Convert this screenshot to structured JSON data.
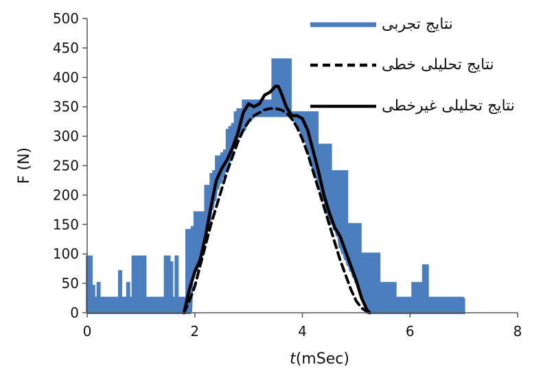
{
  "chart_data": {
    "type": "line",
    "xlabel_italic": "t",
    "xlabel_unit": "(mSec)",
    "ylabel": "F (N)",
    "xlim": [
      0,
      8
    ],
    "ylim": [
      0,
      500
    ],
    "x_ticks": [
      0,
      2,
      4,
      6,
      8
    ],
    "y_ticks": [
      0,
      50,
      100,
      150,
      200,
      250,
      300,
      350,
      400,
      450,
      500
    ],
    "grid": false,
    "legend_position": "top-right",
    "series": [
      {
        "name": "نتایج تجربی",
        "style": "solid-thick",
        "color": "#4a7ebf",
        "x": [
          0,
          0.05,
          0.1,
          0.15,
          0.2,
          0.25,
          0.3,
          0.35,
          0.4,
          0.45,
          0.5,
          0.55,
          0.6,
          0.65,
          0.7,
          0.75,
          0.8,
          0.85,
          0.9,
          0.95,
          1.0,
          1.05,
          1.1,
          1.15,
          1.2,
          1.25,
          1.3,
          1.35,
          1.4,
          1.45,
          1.5,
          1.55,
          1.6,
          1.65,
          1.7,
          1.75,
          1.8,
          1.85,
          1.9,
          1.95,
          2.0,
          2.05,
          2.1,
          2.15,
          2.2,
          2.25,
          2.3,
          2.35,
          2.4,
          2.45,
          2.5,
          2.55,
          2.6,
          2.65,
          2.7,
          2.75,
          2.8,
          2.85,
          2.9,
          2.95,
          3.0,
          3.05,
          3.1,
          3.15,
          3.2,
          3.25,
          3.3,
          3.35,
          3.4,
          3.45,
          3.5,
          3.55,
          3.6,
          3.65,
          3.7,
          3.75,
          3.8,
          3.85,
          3.9,
          3.95,
          4.0,
          4.05,
          4.1,
          4.15,
          4.2,
          4.25,
          4.3,
          4.35,
          4.4,
          4.45,
          4.5,
          4.55,
          4.6,
          4.65,
          4.7,
          4.75,
          4.8,
          4.85,
          4.9,
          4.95,
          5.0,
          5.05,
          5.1,
          5.15,
          5.2,
          5.25,
          5.3,
          5.35,
          5.4,
          5.45,
          5.5,
          5.55,
          5.6,
          5.65,
          5.7,
          5.75,
          5.8,
          5.85,
          5.9,
          5.95,
          6.0,
          6.05,
          6.1,
          6.15,
          6.2,
          6.25,
          6.3,
          6.35,
          6.4,
          6.45,
          6.5,
          6.55,
          6.6,
          6.65,
          6.7,
          6.75,
          6.8,
          6.85,
          6.9,
          6.95,
          7.0
        ],
        "y_low": [
          0,
          0,
          0,
          0,
          0,
          0,
          0,
          0,
          0,
          0,
          0,
          0,
          0,
          0,
          0,
          0,
          0,
          0,
          0,
          0,
          0,
          0,
          0,
          0,
          0,
          0,
          0,
          0,
          0,
          0,
          0,
          0,
          0,
          0,
          0,
          0,
          0,
          0,
          0,
          60,
          70,
          80,
          110,
          120,
          140,
          150,
          175,
          190,
          210,
          220,
          230,
          240,
          250,
          265,
          280,
          290,
          300,
          305,
          310,
          320,
          325,
          330,
          335,
          335,
          335,
          335,
          335,
          335,
          335,
          335,
          335,
          335,
          335,
          335,
          335,
          335,
          330,
          325,
          320,
          310,
          300,
          290,
          275,
          260,
          245,
          230,
          220,
          205,
          190,
          170,
          160,
          150,
          140,
          130,
          110,
          100,
          90,
          80,
          70,
          60,
          50,
          40,
          25,
          15,
          0,
          0,
          0,
          0,
          0,
          0,
          0,
          0,
          0,
          0,
          0,
          0,
          0,
          0,
          0,
          0,
          0,
          0,
          0,
          0,
          0,
          0,
          0,
          0,
          0,
          0,
          0,
          0,
          0,
          0,
          0,
          0,
          0,
          0,
          0,
          0,
          0
        ],
        "y_high": [
          95,
          95,
          45,
          25,
          50,
          25,
          25,
          25,
          25,
          25,
          25,
          25,
          70,
          25,
          25,
          50,
          25,
          95,
          95,
          95,
          95,
          95,
          25,
          25,
          25,
          25,
          25,
          25,
          25,
          95,
          95,
          85,
          25,
          95,
          25,
          25,
          25,
          140,
          140,
          145,
          170,
          170,
          170,
          170,
          215,
          215,
          235,
          240,
          265,
          265,
          270,
          275,
          310,
          315,
          320,
          340,
          345,
          345,
          360,
          360,
          360,
          360,
          360,
          360,
          360,
          360,
          360,
          360,
          360,
          430,
          430,
          430,
          430,
          430,
          430,
          430,
          340,
          340,
          340,
          340,
          340,
          340,
          340,
          340,
          340,
          340,
          285,
          285,
          285,
          285,
          285,
          240,
          240,
          240,
          240,
          240,
          240,
          150,
          150,
          150,
          150,
          150,
          100,
          100,
          100,
          100,
          100,
          100,
          100,
          50,
          50,
          50,
          50,
          50,
          50,
          25,
          25,
          25,
          25,
          25,
          25,
          50,
          50,
          50,
          50,
          80,
          80,
          25,
          25,
          25,
          25,
          25,
          25,
          25,
          25,
          25,
          25,
          25,
          25,
          25,
          25
        ]
      },
      {
        "name": "نتایج تحلیلی خطی",
        "style": "dashed",
        "color": "#000000",
        "x": [
          1.8,
          1.9,
          2.0,
          2.1,
          2.2,
          2.3,
          2.4,
          2.5,
          2.6,
          2.7,
          2.8,
          2.9,
          3.0,
          3.1,
          3.2,
          3.3,
          3.4,
          3.5,
          3.6,
          3.7,
          3.8,
          3.9,
          4.0,
          4.1,
          4.2,
          4.3,
          4.4,
          4.5,
          4.6,
          4.7,
          4.8,
          4.9,
          5.0,
          5.1,
          5.2,
          5.25
        ],
        "y": [
          0,
          20,
          45,
          80,
          115,
          150,
          180,
          210,
          240,
          265,
          290,
          310,
          325,
          335,
          340,
          345,
          347,
          347,
          345,
          340,
          330,
          315,
          295,
          270,
          240,
          210,
          180,
          150,
          120,
          90,
          65,
          40,
          20,
          8,
          2,
          0
        ]
      },
      {
        "name": "نتایج تحلیلی غیرخطی",
        "style": "solid",
        "color": "#000000",
        "x": [
          1.8,
          1.9,
          2.0,
          2.1,
          2.2,
          2.3,
          2.4,
          2.5,
          2.6,
          2.7,
          2.8,
          2.9,
          3.0,
          3.1,
          3.2,
          3.3,
          3.4,
          3.5,
          3.55,
          3.6,
          3.7,
          3.8,
          3.9,
          4.0,
          4.1,
          4.2,
          4.3,
          4.4,
          4.5,
          4.6,
          4.7,
          4.8,
          4.9,
          5.0,
          5.1,
          5.2,
          5.25
        ],
        "y": [
          0,
          40,
          70,
          90,
          130,
          180,
          225,
          245,
          260,
          280,
          305,
          340,
          355,
          350,
          355,
          370,
          375,
          385,
          385,
          375,
          350,
          335,
          335,
          330,
          310,
          275,
          240,
          200,
          170,
          145,
          130,
          105,
          80,
          55,
          25,
          5,
          0
        ]
      }
    ]
  }
}
